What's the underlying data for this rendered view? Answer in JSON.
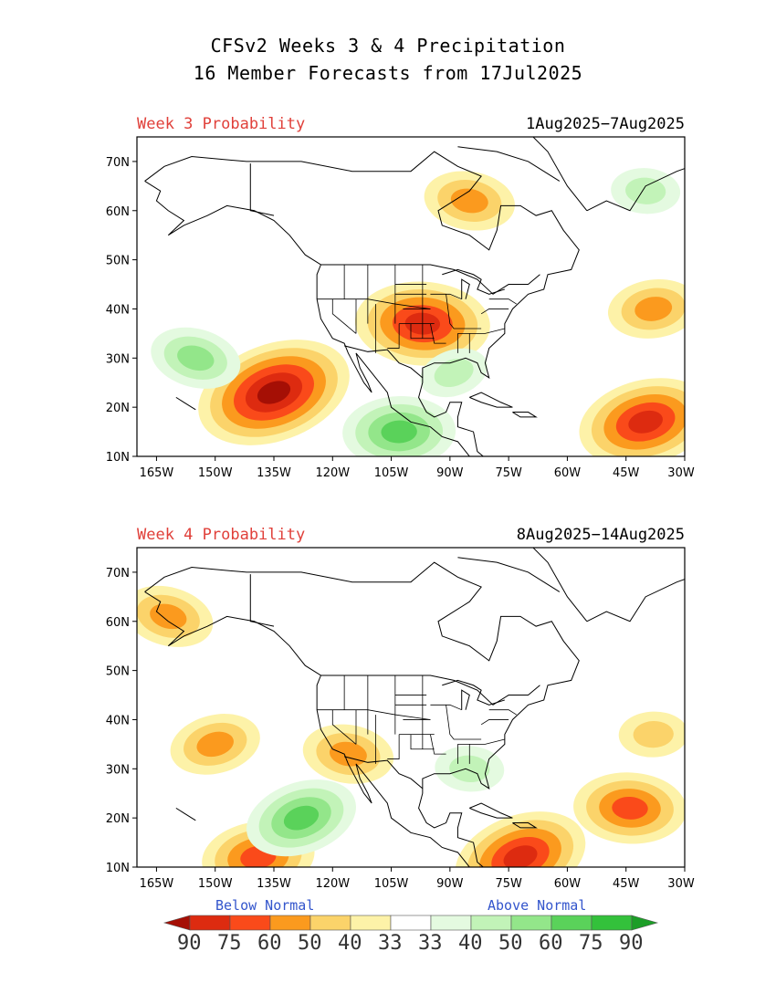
{
  "title_line1": "CFSv2 Weeks 3 & 4 Precipitation",
  "title_line2": "16 Member Forecasts from 17Jul2025",
  "panels": [
    {
      "label": "Week 3 Probability",
      "dates": "1Aug2025−7Aug2025",
      "lat_ticks": [
        "70N",
        "60N",
        "50N",
        "40N",
        "30N",
        "20N",
        "10N"
      ],
      "lon_ticks": [
        "165W",
        "150W",
        "135W",
        "120W",
        "105W",
        "90W",
        "75W",
        "60W",
        "45W",
        "30W"
      ],
      "features": [
        {
          "type": "below",
          "name": "east-pacific-dry-core",
          "lon": -135,
          "lat": 23,
          "level": 5
        },
        {
          "type": "below",
          "name": "central-plains-dry",
          "lon": -97,
          "lat": 37,
          "level": 4
        },
        {
          "type": "below",
          "name": "atlantic-dry-band",
          "lon": -40,
          "lat": 17,
          "level": 4
        },
        {
          "type": "below",
          "name": "hudson-bay-dry",
          "lon": -85,
          "lat": 62,
          "level": 2
        },
        {
          "type": "below",
          "name": "north-atlantic-dry",
          "lon": -38,
          "lat": 40,
          "level": 2
        },
        {
          "type": "above",
          "name": "pacific-wet",
          "lon": -155,
          "lat": 30,
          "level": 2
        },
        {
          "type": "above",
          "name": "mexico-wet",
          "lon": -103,
          "lat": 15,
          "level": 3
        },
        {
          "type": "above",
          "name": "gulf-wet",
          "lon": -89,
          "lat": 27,
          "level": 1
        },
        {
          "type": "above",
          "name": "greenland-wet",
          "lon": -40,
          "lat": 64,
          "level": 1
        }
      ]
    },
    {
      "label": "Week 4 Probability",
      "dates": "8Aug2025−14Aug2025",
      "lat_ticks": [
        "70N",
        "60N",
        "50N",
        "40N",
        "30N",
        "20N",
        "10N"
      ],
      "lon_ticks": [
        "165W",
        "150W",
        "135W",
        "120W",
        "105W",
        "90W",
        "75W",
        "60W",
        "45W",
        "30W"
      ],
      "features": [
        {
          "type": "below",
          "name": "caribbean-dry",
          "lon": -72,
          "lat": 12,
          "level": 4
        },
        {
          "type": "below",
          "name": "atlantic-dry",
          "lon": -44,
          "lat": 22,
          "level": 3
        },
        {
          "type": "below",
          "name": "pacific-dry",
          "lon": -150,
          "lat": 35,
          "level": 2
        },
        {
          "type": "below",
          "name": "baja-dry",
          "lon": -116,
          "lat": 33,
          "level": 2
        },
        {
          "type": "below",
          "name": "east-pacific-dry",
          "lon": -139,
          "lat": 12,
          "level": 3
        },
        {
          "type": "below",
          "name": "alaska-dry",
          "lon": -162,
          "lat": 61,
          "level": 2
        },
        {
          "type": "below",
          "name": "mid-atlantic-dry",
          "lon": -38,
          "lat": 37,
          "level": 1
        },
        {
          "type": "above",
          "name": "pacific-wet",
          "lon": -128,
          "lat": 20,
          "level": 3
        },
        {
          "type": "above",
          "name": "florida-wet",
          "lon": -85,
          "lat": 30,
          "level": 1
        }
      ]
    }
  ],
  "legend": {
    "below_label": "Below Normal",
    "above_label": "Above Normal",
    "values": [
      "90",
      "75",
      "60",
      "50",
      "40",
      "33",
      "33",
      "40",
      "50",
      "60",
      "75",
      "90"
    ],
    "colors": [
      "#a50f05",
      "#dd2b10",
      "#fa4a1a",
      "#fb9a1e",
      "#fbd36a",
      "#fdf2a8",
      "#ffffff",
      "#e4fae0",
      "#c2f3b8",
      "#93e68a",
      "#5ad25a",
      "#33c13b",
      "#1c9e27"
    ]
  }
}
